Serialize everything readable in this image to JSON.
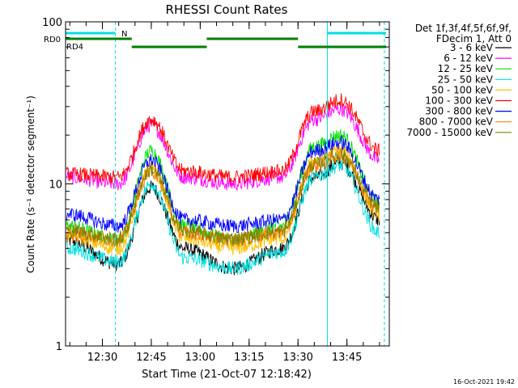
{
  "chart_data": {
    "type": "line",
    "title": "RHESSI Count Rates",
    "xlabel": "Start Time (21-Oct-07 12:18:42)",
    "ylabel": "Count Rate (s⁻¹ detector segment⁻¹)",
    "y_scale": "log",
    "ylim": [
      1,
      100
    ],
    "xlim": [
      "12:18:42",
      "13:58:00"
    ],
    "y_ticks": [
      {
        "value": 1,
        "label": "1"
      },
      {
        "value": 10,
        "label": "10"
      },
      {
        "value": 100,
        "label": "100"
      }
    ],
    "x_ticks": [
      {
        "time": "12:30",
        "label": "12:30"
      },
      {
        "time": "12:45",
        "label": "12:45"
      },
      {
        "time": "13:00",
        "label": "13:00"
      },
      {
        "time": "13:15",
        "label": "13:15"
      },
      {
        "time": "13:30",
        "label": "13:30"
      },
      {
        "time": "13:45",
        "label": "13:45"
      }
    ],
    "legend_header": [
      "Det 1f,3f,4f,5f,6f,9f,",
      "FDecim 1, Att 0"
    ],
    "legend_placement": "right",
    "series": [
      {
        "name": "3 - 6 keV",
        "color": "#000000",
        "x": [
          "12:19",
          "12:35",
          "12:45",
          "12:55",
          "13:10",
          "13:25",
          "13:35",
          "13:43",
          "13:55"
        ],
        "y": [
          4.5,
          3.2,
          9.5,
          4.0,
          3.0,
          4.0,
          11.0,
          13.5,
          6.0
        ]
      },
      {
        "name": "6 - 12 keV",
        "color": "#ff00ff",
        "x": [
          "12:19",
          "12:35",
          "12:45",
          "12:55",
          "13:10",
          "13:25",
          "13:35",
          "13:43",
          "13:55"
        ],
        "y": [
          11.0,
          10.0,
          23.0,
          11.0,
          10.0,
          11.0,
          25.0,
          29.0,
          14.0
        ]
      },
      {
        "name": "12 - 25 keV",
        "color": "#00e000",
        "x": [
          "12:19",
          "12:35",
          "12:45",
          "12:55",
          "13:10",
          "13:25",
          "13:35",
          "13:43",
          "13:55"
        ],
        "y": [
          5.5,
          4.5,
          16.0,
          5.5,
          4.5,
          5.5,
          17.0,
          20.0,
          7.5
        ]
      },
      {
        "name": "25 - 50 keV",
        "color": "#00e0e0",
        "x": [
          "12:19",
          "12:35",
          "12:45",
          "12:55",
          "13:10",
          "13:25",
          "13:35",
          "13:43",
          "13:55"
        ],
        "y": [
          4.0,
          3.3,
          10.0,
          3.5,
          3.0,
          3.8,
          11.0,
          13.0,
          5.0
        ]
      },
      {
        "name": "50 - 100 keV",
        "color": "#ffc000",
        "x": [
          "12:19",
          "12:35",
          "12:45",
          "12:55",
          "13:10",
          "13:25",
          "13:35",
          "13:43",
          "13:55"
        ],
        "y": [
          4.8,
          4.0,
          12.5,
          4.6,
          4.0,
          4.6,
          14.0,
          16.0,
          6.5
        ]
      },
      {
        "name": "100 - 300 keV",
        "color": "#ff0000",
        "x": [
          "12:19",
          "12:35",
          "12:45",
          "12:55",
          "13:10",
          "13:25",
          "13:35",
          "13:43",
          "13:55"
        ],
        "y": [
          11.5,
          11.0,
          25.0,
          12.0,
          11.0,
          12.0,
          28.0,
          33.0,
          16.0
        ]
      },
      {
        "name": "300 - 800 keV",
        "color": "#0000ff",
        "x": [
          "12:19",
          "12:35",
          "12:45",
          "12:55",
          "13:10",
          "13:25",
          "13:35",
          "13:43",
          "13:55"
        ],
        "y": [
          6.5,
          5.5,
          14.0,
          6.0,
          5.5,
          6.0,
          16.0,
          18.0,
          8.0
        ]
      },
      {
        "name": "800 - 7000 keV",
        "color": "#ff8000",
        "x": [
          "12:19",
          "12:35",
          "12:45",
          "12:55",
          "13:10",
          "13:25",
          "13:35",
          "13:43",
          "13:55"
        ],
        "y": [
          5.0,
          4.5,
          12.0,
          5.0,
          4.5,
          5.0,
          13.0,
          15.0,
          7.0
        ]
      },
      {
        "name": "7000 - 15000 keV",
        "color": "#808000",
        "x": [
          "12:19",
          "12:35",
          "12:45",
          "12:55",
          "13:10",
          "13:25",
          "13:35",
          "13:43",
          "13:55"
        ],
        "y": [
          5.2,
          4.6,
          12.2,
          5.1,
          4.6,
          5.1,
          13.2,
          15.2,
          7.1
        ]
      }
    ],
    "flag_bars": [
      {
        "label": "N",
        "color": "#00e0e0",
        "segments": [
          [
            "12:18:42",
            "12:34"
          ],
          [
            "13:39",
            "13:57"
          ]
        ]
      },
      {
        "label": "RD0",
        "color": "#008000",
        "segments": [
          [
            "12:18:42",
            "12:39"
          ],
          [
            "13:02",
            "13:30"
          ]
        ]
      },
      {
        "label": "RD4",
        "color": "#008000",
        "segments": [
          [
            "12:39",
            "13:02"
          ],
          [
            "13:30",
            "13:57"
          ]
        ]
      }
    ],
    "vertical_markers": [
      {
        "time": "12:18:42",
        "style": "solid",
        "color": "#00e0e0"
      },
      {
        "time": "12:34",
        "style": "dashed",
        "color": "#00e0e0"
      },
      {
        "time": "13:39",
        "style": "solid",
        "color": "#00e0e0"
      },
      {
        "time": "13:56:30",
        "style": "dashed",
        "color": "#00e0e0"
      }
    ],
    "timestamp": "16-Oct-2021 19:42"
  }
}
